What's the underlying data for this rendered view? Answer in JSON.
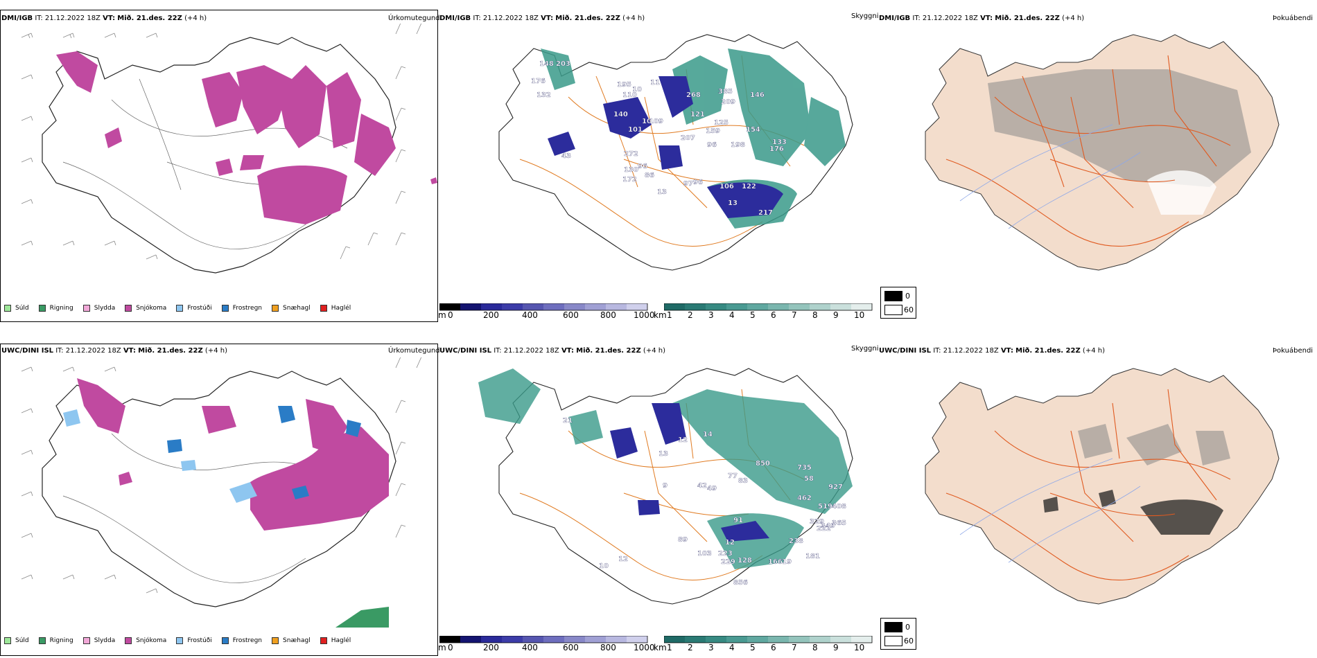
{
  "rows": [
    {
      "model": "DMI/IGB",
      "issue_label": "IT:",
      "issue_time": "21.12.2022 18Z",
      "valid_label": "VT:",
      "valid_time": "Mið. 21.des. 22Z",
      "lead": "(+4 h)",
      "panels": {
        "precip": "Úrkomutegund",
        "visibility": "Skyggni",
        "fog": "Þokuábendi"
      },
      "visibility_labels": [
        "148",
        "203",
        "176",
        "132",
        "195",
        "110",
        "10",
        "140",
        "101",
        "10",
        "109",
        "11",
        "268",
        "385",
        "209",
        "125",
        "121",
        "146",
        "154",
        "159",
        "207",
        "96",
        "198",
        "176",
        "133",
        "43",
        "272",
        "130",
        "172",
        "96",
        "86",
        "97",
        "96",
        "106",
        "122",
        "13",
        "13",
        "217"
      ]
    },
    {
      "model": "UWC/DINI ISL",
      "issue_label": "IT:",
      "issue_time": "21.12.2022 18Z",
      "valid_label": "VT:",
      "valid_time": "Mið. 21.des. 22Z",
      "lead": "(+4 h)",
      "panels": {
        "precip": "Úrkomutegund",
        "visibility": "Skyggni",
        "fog": "Þokuábendi"
      },
      "visibility_labels": [
        "21",
        "12",
        "14",
        "13",
        "9",
        "42",
        "49",
        "850",
        "735",
        "58",
        "462",
        "927",
        "77",
        "83",
        "519",
        "408",
        "329",
        "365",
        "91",
        "349",
        "222",
        "12",
        "238",
        "181",
        "103",
        "223",
        "229",
        "128",
        "166",
        "19",
        "89",
        "12",
        "10",
        "856"
      ]
    }
  ],
  "precip_legend": [
    {
      "label": "Súld",
      "color": "#9ee89a"
    },
    {
      "label": "Rigning",
      "color": "#3a9a64"
    },
    {
      "label": "Slydda",
      "color": "#f2a8d8"
    },
    {
      "label": "Snjókoma",
      "color": "#c04aa0"
    },
    {
      "label": "Frostúði",
      "color": "#8ec6f0"
    },
    {
      "label": "Frostregn",
      "color": "#2a7cc6"
    },
    {
      "label": "Snæhagl",
      "color": "#f0a020"
    },
    {
      "label": "Haglél",
      "color": "#e02020"
    }
  ],
  "vis_colorbar_m": {
    "unit": "m",
    "ticks": [
      "0",
      "200",
      "400",
      "600",
      "800",
      "1000"
    ]
  },
  "vis_colorbar_km": {
    "unit": "km",
    "ticks": [
      "1",
      "2",
      "3",
      "4",
      "5",
      "6",
      "7",
      "8",
      "9",
      "10"
    ]
  },
  "fog_legend": {
    "values": [
      "0",
      "60"
    ]
  },
  "colors": {
    "snow": "#c04aa0",
    "rain": "#3a9a64",
    "frz_drizzle": "#8ec6f0",
    "frz_rain": "#2a7cc6",
    "vis_low": "#2c2c9c",
    "vis_high": "#3a9a8a",
    "land": "#f3ddcc",
    "road": "#e05a20",
    "orange_road": "#e07a20"
  }
}
